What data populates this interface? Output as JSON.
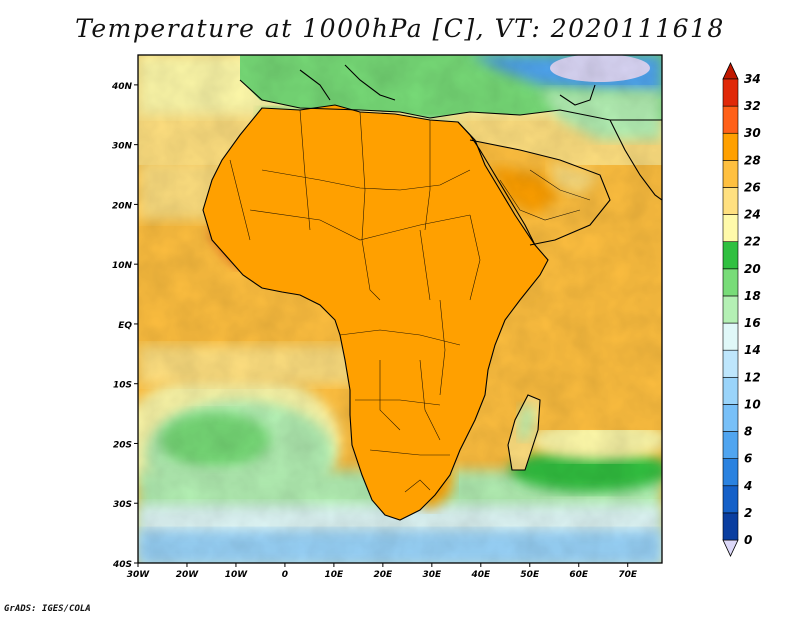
{
  "title": "Temperature at 1000hPa [C], VT: 2020111618",
  "credit": "GrADS: IGES/COLA",
  "map": {
    "lat_range": [
      -40,
      45
    ],
    "lon_range": [
      -30,
      77
    ],
    "lat_ticks": [
      {
        "value": 40,
        "label": "40N"
      },
      {
        "value": 30,
        "label": "30N"
      },
      {
        "value": 20,
        "label": "20N"
      },
      {
        "value": 10,
        "label": "10N"
      },
      {
        "value": 0,
        "label": "EQ"
      },
      {
        "value": -10,
        "label": "10S"
      },
      {
        "value": -20,
        "label": "20S"
      },
      {
        "value": -30,
        "label": "30S"
      },
      {
        "value": -40,
        "label": "40S"
      }
    ],
    "lon_ticks": [
      {
        "value": -30,
        "label": "30W"
      },
      {
        "value": -20,
        "label": "20W"
      },
      {
        "value": -10,
        "label": "10W"
      },
      {
        "value": 0,
        "label": "0"
      },
      {
        "value": 10,
        "label": "10E"
      },
      {
        "value": 20,
        "label": "20E"
      },
      {
        "value": 30,
        "label": "30E"
      },
      {
        "value": 40,
        "label": "40E"
      },
      {
        "value": 50,
        "label": "50E"
      },
      {
        "value": 60,
        "label": "60E"
      },
      {
        "value": 70,
        "label": "70E"
      }
    ]
  },
  "colorbar": {
    "levels": [
      {
        "value": 0,
        "label": "0",
        "color": "#1a1a78"
      },
      {
        "value": 2,
        "label": "2",
        "color": "#0a3ea0"
      },
      {
        "value": 4,
        "label": "4",
        "color": "#1460c8"
      },
      {
        "value": 6,
        "label": "6",
        "color": "#2a82e0"
      },
      {
        "value": 8,
        "label": "8",
        "color": "#50a5f0"
      },
      {
        "value": 10,
        "label": "10",
        "color": "#78c0f8"
      },
      {
        "value": 12,
        "label": "12",
        "color": "#9ad4fa"
      },
      {
        "value": 14,
        "label": "14",
        "color": "#bee6fc"
      },
      {
        "value": 16,
        "label": "16",
        "color": "#e0f8f8"
      },
      {
        "value": 18,
        "label": "18",
        "color": "#b4f0b4"
      },
      {
        "value": 20,
        "label": "20",
        "color": "#78dc78"
      },
      {
        "value": 22,
        "label": "22",
        "color": "#30c040"
      },
      {
        "value": 24,
        "label": "24",
        "color": "#fffaaa"
      },
      {
        "value": 26,
        "label": "26",
        "color": "#ffe080"
      },
      {
        "value": 28,
        "label": "28",
        "color": "#ffc040"
      },
      {
        "value": 30,
        "label": "30",
        "color": "#ffa000"
      },
      {
        "value": 32,
        "label": "32",
        "color": "#ff6018"
      },
      {
        "value": 34,
        "label": "34",
        "color": "#e02808"
      }
    ],
    "under_color": "#dcd8f8",
    "over_color": "#c01800"
  },
  "colors": {
    "ocean_tropical": "#ffc040",
    "ocean_north": "#ffe080",
    "land_outline": "#000000",
    "frame": "#000000"
  }
}
